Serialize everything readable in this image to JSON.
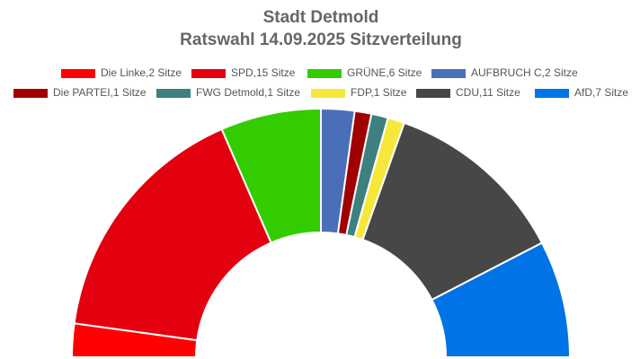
{
  "chart_data": {
    "type": "semicircle",
    "title": "Stadt Detmold",
    "subtitle": "Ratswahl 14.09.2025 Sitzverteilung",
    "categories": [
      "Die Linke,2 Sitze",
      "SPD,15 Sitze",
      "GRÜNE,6 Sitze",
      "AUFBRUCH C,2 Sitze",
      "Die PARTEI,1 Sitze",
      "FWG Detmold,1 Sitze",
      "FDP,1 Sitze",
      "CDU,11 Sitze",
      "AfD,7 Sitze"
    ],
    "values": [
      2,
      15,
      6,
      2,
      1,
      1,
      1,
      11,
      7
    ],
    "colors": [
      "#ff0000",
      "#e3000f",
      "#33cc00",
      "#4a6fb8",
      "#a00000",
      "#3e8080",
      "#f5e83a",
      "#474747",
      "#0073e6"
    ]
  }
}
